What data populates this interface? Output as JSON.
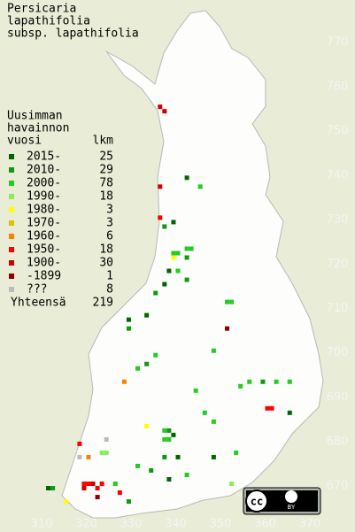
{
  "title": [
    "Persicaria",
    "lapathifolia",
    "subsp. lapathifolia"
  ],
  "legend": {
    "header": [
      "Uusimman",
      "havainnon",
      "vuosi"
    ],
    "count_header": "lkm",
    "entries": [
      {
        "label": "2015-",
        "count": 25,
        "color": "#006400"
      },
      {
        "label": "2010-",
        "count": 29,
        "color": "#109a10"
      },
      {
        "label": "2000-",
        "count": 78,
        "color": "#22cc22"
      },
      {
        "label": "1990-",
        "count": 18,
        "color": "#88ee55"
      },
      {
        "label": "1980-",
        "count": 3,
        "color": "#ffff00"
      },
      {
        "label": "1970-",
        "count": 3,
        "color": "#e0c000"
      },
      {
        "label": "1960-",
        "count": 6,
        "color": "#ff8000"
      },
      {
        "label": "1950-",
        "count": 18,
        "color": "#ff0000"
      },
      {
        "label": "1900-",
        "count": 30,
        "color": "#cc0000"
      },
      {
        "label": "-1899",
        "count": 1,
        "color": "#880000"
      },
      {
        "label": "???",
        "count": 8,
        "color": "#bbbbbb"
      }
    ],
    "total_label": "Yhteensä",
    "total": 219
  },
  "xticks": [
    310,
    320,
    330,
    340,
    350,
    360,
    370
  ],
  "yticks": [
    670,
    680,
    690,
    700,
    710,
    720,
    730,
    740,
    750,
    760,
    770
  ],
  "squares": [
    [
      336,
      755,
      8
    ],
    [
      337,
      754,
      8
    ],
    [
      336,
      737,
      8
    ],
    [
      342,
      739,
      0
    ],
    [
      345,
      737,
      2
    ],
    [
      336,
      730,
      7
    ],
    [
      337,
      728,
      1
    ],
    [
      339,
      729,
      0
    ],
    [
      339,
      722,
      2
    ],
    [
      340,
      722,
      2
    ],
    [
      339,
      721,
      4
    ],
    [
      342,
      723,
      2
    ],
    [
      343,
      723,
      2
    ],
    [
      342,
      721,
      1
    ],
    [
      338,
      718,
      0
    ],
    [
      340,
      718,
      2
    ],
    [
      342,
      716,
      1
    ],
    [
      337,
      715,
      0
    ],
    [
      335,
      713,
      1
    ],
    [
      351,
      711,
      2
    ],
    [
      352,
      711,
      2
    ],
    [
      329,
      707,
      0
    ],
    [
      333,
      708,
      0
    ],
    [
      329,
      705,
      1
    ],
    [
      351,
      705,
      9
    ],
    [
      335,
      699,
      2
    ],
    [
      333,
      697,
      1
    ],
    [
      331,
      696,
      2
    ],
    [
      348,
      700,
      2
    ],
    [
      328,
      693,
      6
    ],
    [
      344,
      691,
      2
    ],
    [
      354,
      692,
      2
    ],
    [
      356,
      693,
      2
    ],
    [
      359,
      693,
      1
    ],
    [
      362,
      693,
      2
    ],
    [
      365,
      693,
      2
    ],
    [
      360,
      687,
      7
    ],
    [
      361,
      687,
      7
    ],
    [
      365,
      686,
      0
    ],
    [
      346,
      686,
      2
    ],
    [
      348,
      684,
      2
    ],
    [
      337,
      682,
      2
    ],
    [
      338,
      682,
      1
    ],
    [
      339,
      681,
      0
    ],
    [
      337,
      680,
      2
    ],
    [
      338,
      680,
      2
    ],
    [
      333,
      683,
      4
    ],
    [
      324,
      680,
      10
    ],
    [
      318,
      679,
      7
    ],
    [
      318,
      676,
      10
    ],
    [
      323,
      677,
      3
    ],
    [
      324,
      677,
      3
    ],
    [
      320,
      676,
      6
    ],
    [
      337,
      676,
      1
    ],
    [
      340,
      676,
      0
    ],
    [
      348,
      676,
      0
    ],
    [
      353,
      677,
      2
    ],
    [
      331,
      674,
      2
    ],
    [
      334,
      673,
      1
    ],
    [
      338,
      671,
      0
    ],
    [
      342,
      672,
      2
    ],
    [
      319,
      670,
      7
    ],
    [
      320,
      670,
      7
    ],
    [
      321,
      670,
      8
    ],
    [
      319,
      669,
      8
    ],
    [
      322,
      669,
      7
    ],
    [
      323,
      670,
      7
    ],
    [
      322,
      667,
      9
    ],
    [
      315,
      666,
      4
    ],
    [
      311,
      669,
      0
    ],
    [
      326,
      670,
      2
    ],
    [
      327,
      668,
      7
    ],
    [
      329,
      666,
      1
    ],
    [
      352,
      670,
      3
    ],
    [
      312,
      669,
      1
    ]
  ],
  "license": [
    "cc",
    "BY"
  ]
}
